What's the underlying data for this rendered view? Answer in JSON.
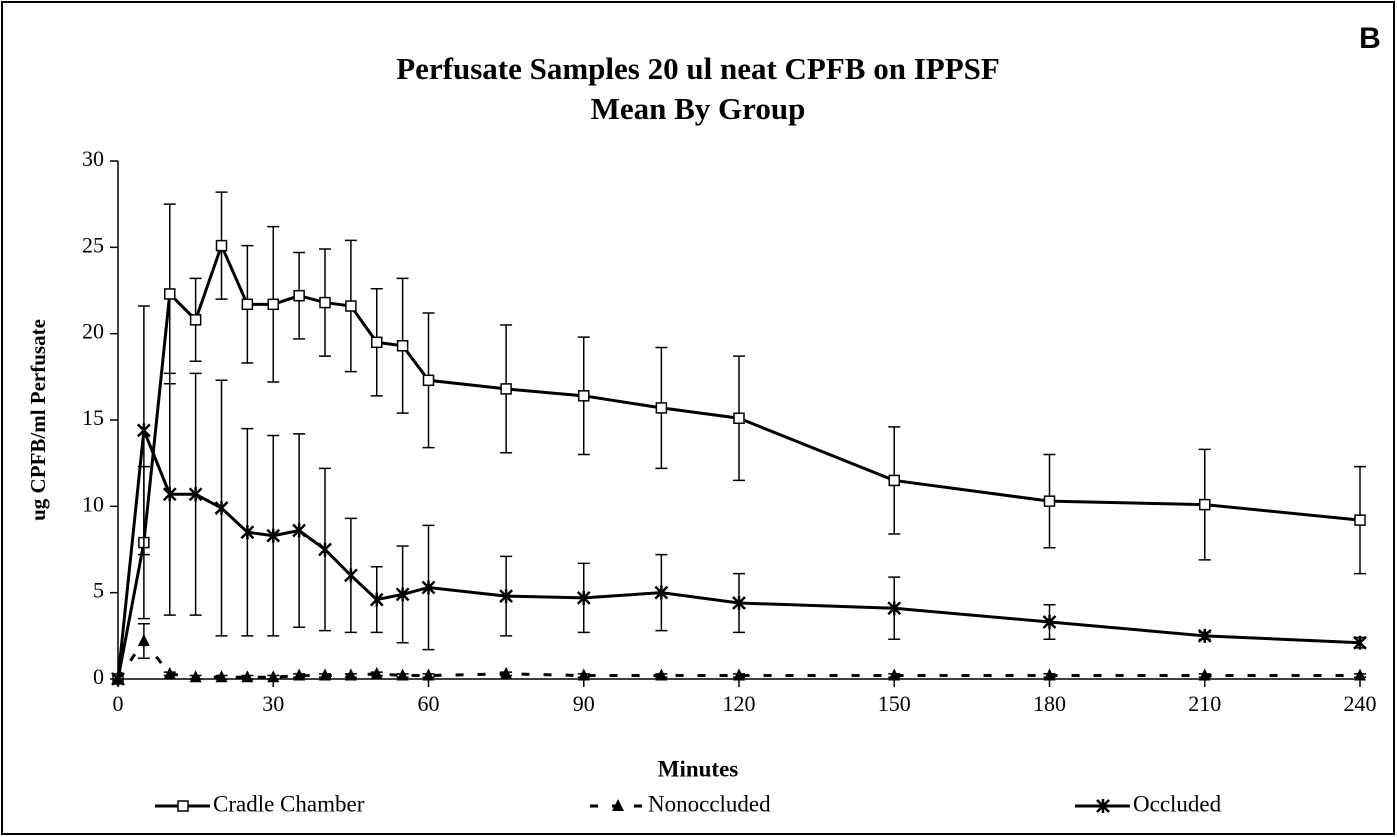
{
  "chart_data": {
    "type": "line",
    "panel_label": "B",
    "title": "Perfusate Samples 20 ul neat CPFB on IPPSF",
    "subtitle": "Mean By Group",
    "x_label": "Minutes",
    "y_label": "ug CPFB/ml Perfusate",
    "x": [
      0,
      5,
      10,
      15,
      20,
      25,
      30,
      35,
      40,
      45,
      50,
      55,
      60,
      75,
      90,
      105,
      120,
      150,
      180,
      210,
      240
    ],
    "series": [
      {
        "name": "Cradle Chamber",
        "color": "#000000",
        "marker": "square",
        "dash": false,
        "values": [
          0,
          7.9,
          22.3,
          20.8,
          25.1,
          21.7,
          21.7,
          22.2,
          21.8,
          21.6,
          19.5,
          19.3,
          17.3,
          16.8,
          16.4,
          15.7,
          15.1,
          11.5,
          10.3,
          10.1,
          9.2
        ],
        "errors": [
          0,
          4.4,
          5.2,
          2.4,
          3.1,
          3.4,
          4.5,
          2.5,
          3.1,
          3.8,
          3.1,
          3.9,
          3.9,
          3.7,
          3.4,
          3.5,
          3.6,
          3.1,
          2.7,
          3.2,
          3.1
        ]
      },
      {
        "name": "Nonoccluded",
        "color": "#000000",
        "marker": "triangle",
        "dash": true,
        "values": [
          0,
          2.2,
          0.3,
          0.1,
          0.1,
          0.1,
          0.1,
          0.2,
          0.2,
          0.2,
          0.3,
          0.2,
          0.2,
          0.3,
          0.2,
          0.2,
          0.2,
          0.2,
          0.2,
          0.2,
          0.2
        ],
        "errors": [
          0,
          1.0,
          0.1,
          0.1,
          0.1,
          0.1,
          0.1,
          0.1,
          0.1,
          0.1,
          0.1,
          0.1,
          0.1,
          0.1,
          0.1,
          0.1,
          0.1,
          0.1,
          0.1,
          0.1,
          0.1
        ]
      },
      {
        "name": "Occluded",
        "color": "#000000",
        "marker": "x",
        "dash": false,
        "values": [
          0,
          14.4,
          10.7,
          10.7,
          9.9,
          8.5,
          8.3,
          8.6,
          7.5,
          6.0,
          4.6,
          4.9,
          5.3,
          4.8,
          4.7,
          5.0,
          4.4,
          4.1,
          3.3,
          2.5,
          2.1
        ],
        "errors": [
          0,
          7.2,
          7.0,
          7.0,
          7.4,
          6.0,
          5.8,
          5.6,
          4.7,
          3.3,
          1.9,
          2.8,
          3.6,
          2.3,
          2.0,
          2.2,
          1.7,
          1.8,
          1.0,
          0.2,
          0.3
        ]
      }
    ],
    "xlim": [
      0,
      240
    ],
    "xticks": [
      0,
      30,
      60,
      90,
      120,
      150,
      180,
      210,
      240
    ],
    "ylim": [
      0,
      30
    ],
    "yticks": [
      0,
      5,
      10,
      15,
      20,
      25,
      30
    ],
    "legend": "bottom"
  }
}
